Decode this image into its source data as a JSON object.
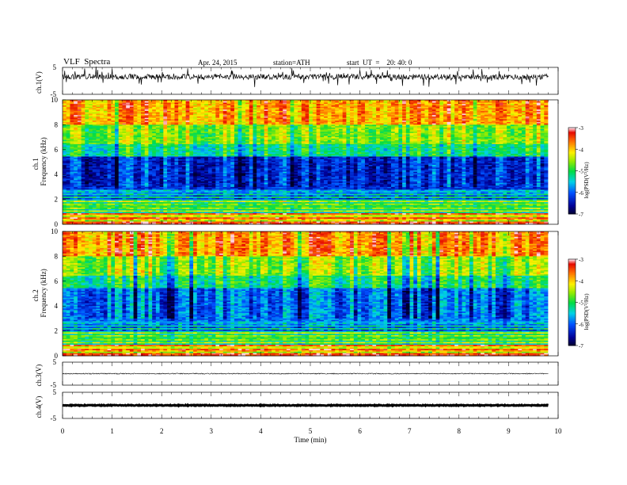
{
  "header": {
    "title": "VLF  Spectra",
    "date": "Apr. 24, 2015",
    "station": "station=ATH",
    "start": "start  UT  =    20: 40: 0"
  },
  "chart_data": [
    {
      "type": "line",
      "panel": "ch1-waveform",
      "ylabel": "ch.1(V)",
      "ylim": [
        -5,
        5
      ],
      "y_ticks": [
        "5",
        "-5"
      ],
      "xlim": [
        0,
        10
      ],
      "description_values": {
        "baseline_v": 1.5,
        "noise_amplitude_v": 1.0
      }
    },
    {
      "type": "heatmap",
      "panel": "ch1-spectrogram",
      "ylabel_channel": "ch.1",
      "ylabel": "Frequency  (kHz)",
      "ylim": [
        0,
        10
      ],
      "y_ticks": [
        "0",
        "2",
        "4",
        "6",
        "8",
        "10"
      ],
      "xlim": [
        0,
        9.8
      ],
      "colorbar": {
        "label": "log(PSD(V²/Hz)",
        "range": [
          -7,
          -3
        ],
        "ticks": [
          "-3",
          "-4",
          "-5",
          "-6",
          "-7"
        ]
      }
    },
    {
      "type": "heatmap",
      "panel": "ch2-spectrogram",
      "ylabel_channel": "ch.2",
      "ylabel": "Frequency  (kHz)",
      "ylim": [
        0,
        10
      ],
      "y_ticks": [
        "0",
        "2",
        "4",
        "6",
        "8",
        "10"
      ],
      "xlim": [
        0,
        9.8
      ],
      "colorbar": {
        "label": "log(PSD(V²/Hz)",
        "range": [
          -7,
          -3
        ],
        "ticks": [
          "-3",
          "-4",
          "-5",
          "-6",
          "-7"
        ]
      }
    },
    {
      "type": "line",
      "panel": "ch3-waveform",
      "ylabel": "ch.3(V)",
      "ylim": [
        -5,
        5
      ],
      "y_ticks": [
        "5",
        "-5"
      ],
      "xlim": [
        0,
        10
      ],
      "description_values": {
        "baseline_v": 0.0,
        "noise_amplitude_v": 0.2
      }
    },
    {
      "type": "line",
      "panel": "ch4-waveform",
      "ylabel": "ch.4(V)",
      "ylim": [
        -5,
        5
      ],
      "y_ticks": [
        "5",
        "-5"
      ],
      "xlim": [
        0,
        10
      ],
      "description_values": {
        "baseline_v": 0.0,
        "noise_amplitude_v": 0.15
      }
    }
  ],
  "x_axis": {
    "label": "Time  (min)",
    "ticks": [
      "0",
      "1",
      "2",
      "3",
      "4",
      "5",
      "6",
      "7",
      "8",
      "9",
      "10"
    ]
  },
  "colors": {
    "background": "#ffffff",
    "trace": "#000000"
  }
}
